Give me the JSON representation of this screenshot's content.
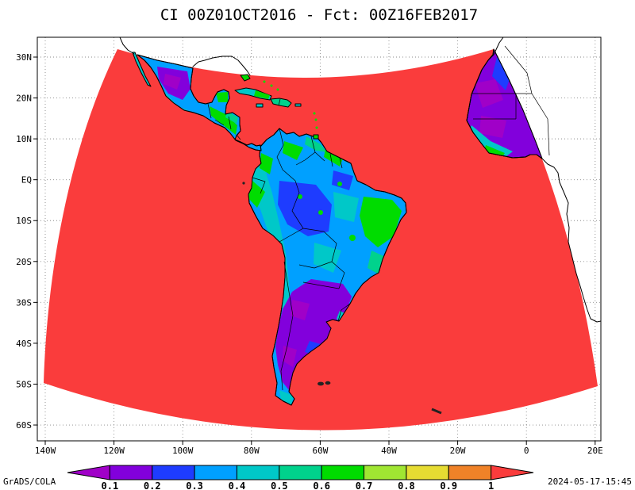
{
  "title": "CI 00Z01OCT2016 - Fct: 00Z16FEB2017",
  "footer": {
    "credits": "GrADS/COLA",
    "timestamp": "2024-05-17-15:45"
  },
  "axes": {
    "lat_ticks": [
      {
        "label": "30N",
        "deg": 30
      },
      {
        "label": "20N",
        "deg": 20
      },
      {
        "label": "10N",
        "deg": 10
      },
      {
        "label": "EQ",
        "deg": 0
      },
      {
        "label": "10S",
        "deg": -10
      },
      {
        "label": "20S",
        "deg": -20
      },
      {
        "label": "30S",
        "deg": -30
      },
      {
        "label": "40S",
        "deg": -40
      },
      {
        "label": "50S",
        "deg": -50
      },
      {
        "label": "60S",
        "deg": -60
      }
    ],
    "lon_ticks": [
      {
        "label": "140W",
        "deg": -140
      },
      {
        "label": "120W",
        "deg": -120
      },
      {
        "label": "100W",
        "deg": -100
      },
      {
        "label": "80W",
        "deg": -80
      },
      {
        "label": "60W",
        "deg": -60
      },
      {
        "label": "40W",
        "deg": -40
      },
      {
        "label": "20W",
        "deg": -20
      },
      {
        "label": "0",
        "deg": 0
      },
      {
        "label": "20E",
        "deg": 20
      }
    ]
  },
  "colorbar": {
    "labels": [
      "0.1",
      "0.2",
      "0.3",
      "0.4",
      "0.5",
      "0.6",
      "0.7",
      "0.8",
      "0.9",
      "1"
    ],
    "colors": [
      "#a000c8",
      "#8200dc",
      "#1e3cff",
      "#00a0ff",
      "#00c8c8",
      "#00d28c",
      "#00dc00",
      "#a0e632",
      "#e6dc32",
      "#f08228",
      "#fa3c3c"
    ]
  },
  "map": {
    "background": "#ffffff",
    "grid_color": "#8a8a8a",
    "coast_color": "#000000",
    "frame_color": "#000000",
    "ocean_in_domain_color": "#fa3c3c",
    "island_speck_color": "#222222"
  },
  "chart_data": {
    "type": "heatmap",
    "title": "CI 00Z01OCT2016 - Fct: 00Z16FEB2017",
    "variable": "CI",
    "initialization": "00Z01OCT2016",
    "forecast_valid": "00Z16FEB2017",
    "levels": [
      0.1,
      0.2,
      0.3,
      0.4,
      0.5,
      0.6,
      0.7,
      0.8,
      0.9,
      1
    ],
    "color_scale": [
      {
        "range": "< 0.1",
        "color": "#a000c8"
      },
      {
        "range": "0.1-0.2",
        "color": "#8200dc"
      },
      {
        "range": "0.2-0.3",
        "color": "#1e3cff"
      },
      {
        "range": "0.3-0.4",
        "color": "#00a0ff"
      },
      {
        "range": "0.4-0.5",
        "color": "#00c8c8"
      },
      {
        "range": "0.5-0.6",
        "color": "#00d28c"
      },
      {
        "range": "0.6-0.7",
        "color": "#00dc00"
      },
      {
        "range": "0.7-0.8",
        "color": "#a0e632"
      },
      {
        "range": "0.8-0.9",
        "color": "#e6dc32"
      },
      {
        "range": "0.9-1",
        "color": "#f08228"
      },
      {
        "range": "> 1",
        "color": "#fa3c3c"
      }
    ],
    "x_axis": {
      "ticks": [
        "140W",
        "120W",
        "100W",
        "80W",
        "60W",
        "40W",
        "20W",
        "0",
        "20E"
      ],
      "lon_range": [
        -142.3,
        21.6
      ]
    },
    "y_axis": {
      "ticks": [
        "30N",
        "20N",
        "10N",
        "EQ",
        "10S",
        "20S",
        "30S",
        "40S",
        "50S",
        "60S"
      ],
      "lat_range": [
        -63.9,
        34.9
      ]
    },
    "grid": {
      "style": "dotted",
      "lat_step_deg": 10,
      "lon_step_deg": 20
    },
    "legend_position": "bottom",
    "field_summary": [
      {
        "region": "Ocean / background inside fan-shaped domain",
        "value": "> 1.0 (red)"
      },
      {
        "region": "Amazon basin",
        "value": "0.2 - 0.5"
      },
      {
        "region": "Eastern / northeastern Brazil",
        "value": "0.4 - 0.7"
      },
      {
        "region": "Argentina, Patagonia, central Chile",
        "value": "0.1 - 0.3"
      },
      {
        "region": "Tierra del Fuego",
        "value": "0.4 - 0.6"
      },
      {
        "region": "Mexican plateau",
        "value": "0.1 - 0.3"
      },
      {
        "region": "Central America and Caribbean islands",
        "value": "0.3 - 0.7"
      },
      {
        "region": "West Africa inside domain",
        "value": "0.1 - 0.3"
      },
      {
        "region": "Outside domain",
        "value": "no data (white map)"
      }
    ]
  }
}
